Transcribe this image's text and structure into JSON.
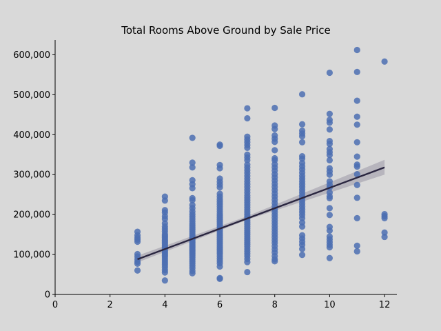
{
  "chart_data": {
    "type": "scatter",
    "title": "Total Rooms Above Ground by Sale Price",
    "xlabel": "",
    "ylabel": "",
    "xlim": [
      0,
      12.45
    ],
    "ylim": [
      0,
      637000
    ],
    "xticks": [
      0,
      2,
      4,
      6,
      8,
      10,
      12
    ],
    "xtick_labels": [
      "0",
      "2",
      "4",
      "6",
      "8",
      "10",
      "12"
    ],
    "yticks": [
      0,
      100000,
      200000,
      300000,
      400000,
      500000,
      600000
    ],
    "ytick_labels": [
      "0",
      "100,000",
      "200,000",
      "300,000",
      "400,000",
      "500,000",
      "600,000"
    ],
    "grid": false,
    "point_color": "#4c6fb1",
    "line_color": "#2a2640",
    "band_color": "#9a98a6",
    "regression_line": {
      "x": [
        3,
        12
      ],
      "y": [
        88000,
        318000
      ]
    },
    "confidence_band": {
      "x": [
        3,
        7,
        12
      ],
      "lower": [
        80000,
        187000,
        300000
      ],
      "upper": [
        97000,
        196000,
        337000
      ]
    },
    "series": [
      {
        "x": 3,
        "values": [
          157000,
          148000,
          142000,
          137000,
          132000,
          101000,
          95000,
          88000,
          82000,
          77000,
          60000
        ]
      },
      {
        "x": 4,
        "values": [
          245000,
          235000,
          211000,
          205000,
          196000,
          189000,
          178000,
          170000,
          164000,
          158000,
          151000,
          147000,
          143000,
          139000,
          135000,
          131000,
          127000,
          123000,
          119000,
          115000,
          110000,
          106000,
          102000,
          98000,
          94000,
          89000,
          84000,
          79000,
          74000,
          68000,
          61000,
          55000,
          35000
        ]
      },
      {
        "x": 5,
        "values": [
          392000,
          330000,
          318000,
          286000,
          276000,
          266000,
          241000,
          236000,
          224000,
          216000,
          208000,
          201000,
          195000,
          189000,
          183000,
          177000,
          172000,
          167000,
          162000,
          157000,
          152000,
          147000,
          142000,
          138000,
          134000,
          130000,
          126000,
          122000,
          118000,
          114000,
          110000,
          106000,
          102000,
          98000,
          93000,
          88000,
          83000,
          78000,
          72000,
          66000,
          59000,
          53000
        ]
      },
      {
        "x": 6,
        "values": [
          375000,
          372000,
          324000,
          316000,
          290000,
          282000,
          275000,
          268000,
          252000,
          245000,
          238000,
          232000,
          226000,
          220000,
          214000,
          208000,
          202000,
          197000,
          192000,
          187000,
          182000,
          177000,
          172000,
          167000,
          162000,
          157000,
          152000,
          147000,
          142000,
          137000,
          132000,
          127000,
          122000,
          117000,
          112000,
          107000,
          102000,
          96000,
          90000,
          84000,
          78000,
          70000,
          41000,
          39000
        ]
      },
      {
        "x": 7,
        "values": [
          466000,
          441000,
          395000,
          388000,
          381000,
          374000,
          367000,
          350000,
          343000,
          336000,
          325000,
          318000,
          311000,
          304000,
          297000,
          290000,
          283000,
          276000,
          269000,
          262000,
          255000,
          248000,
          242000,
          236000,
          230000,
          224000,
          218000,
          212000,
          206000,
          200000,
          195000,
          190000,
          185000,
          180000,
          175000,
          170000,
          165000,
          160000,
          155000,
          150000,
          145000,
          140000,
          135000,
          130000,
          125000,
          120000,
          114000,
          108000,
          102000,
          96000,
          89000,
          81000,
          56000
        ]
      },
      {
        "x": 8,
        "values": [
          467000,
          423000,
          414000,
          398000,
          390000,
          382000,
          361000,
          341000,
          336000,
          326000,
          318000,
          310000,
          301000,
          293000,
          285000,
          277000,
          269000,
          261000,
          253000,
          245000,
          237000,
          229000,
          221000,
          213000,
          206000,
          199000,
          192000,
          185000,
          178000,
          171000,
          164000,
          157000,
          150000,
          143000,
          136000,
          129000,
          121000,
          113000,
          105000,
          96000,
          88000,
          83000
        ]
      },
      {
        "x": 9,
        "values": [
          501000,
          426000,
          410000,
          403000,
          396000,
          381000,
          346000,
          340000,
          329000,
          321000,
          313000,
          305000,
          297000,
          290000,
          283000,
          276000,
          269000,
          262000,
          255000,
          248000,
          241000,
          234000,
          227000,
          220000,
          213000,
          206000,
          199000,
          191000,
          180000,
          170000,
          148000,
          140000,
          132000,
          124000,
          114000,
          99000
        ]
      },
      {
        "x": 10,
        "values": [
          555000,
          452000,
          437000,
          430000,
          413000,
          384000,
          377000,
          364000,
          356000,
          349000,
          336000,
          316000,
          308000,
          300000,
          283000,
          275000,
          268000,
          255000,
          246000,
          241000,
          216000,
          199000,
          169000,
          160000,
          145000,
          138000,
          131000,
          124000,
          118000,
          91000
        ]
      },
      {
        "x": 11,
        "values": [
          612000,
          557000,
          485000,
          445000,
          425000,
          381000,
          345000,
          325000,
          320000,
          301000,
          274000,
          242000,
          191000,
          122000,
          108000
        ]
      },
      {
        "x": 12,
        "values": [
          583000,
          201000,
          196000,
          191000,
          155000,
          144000
        ]
      }
    ]
  }
}
